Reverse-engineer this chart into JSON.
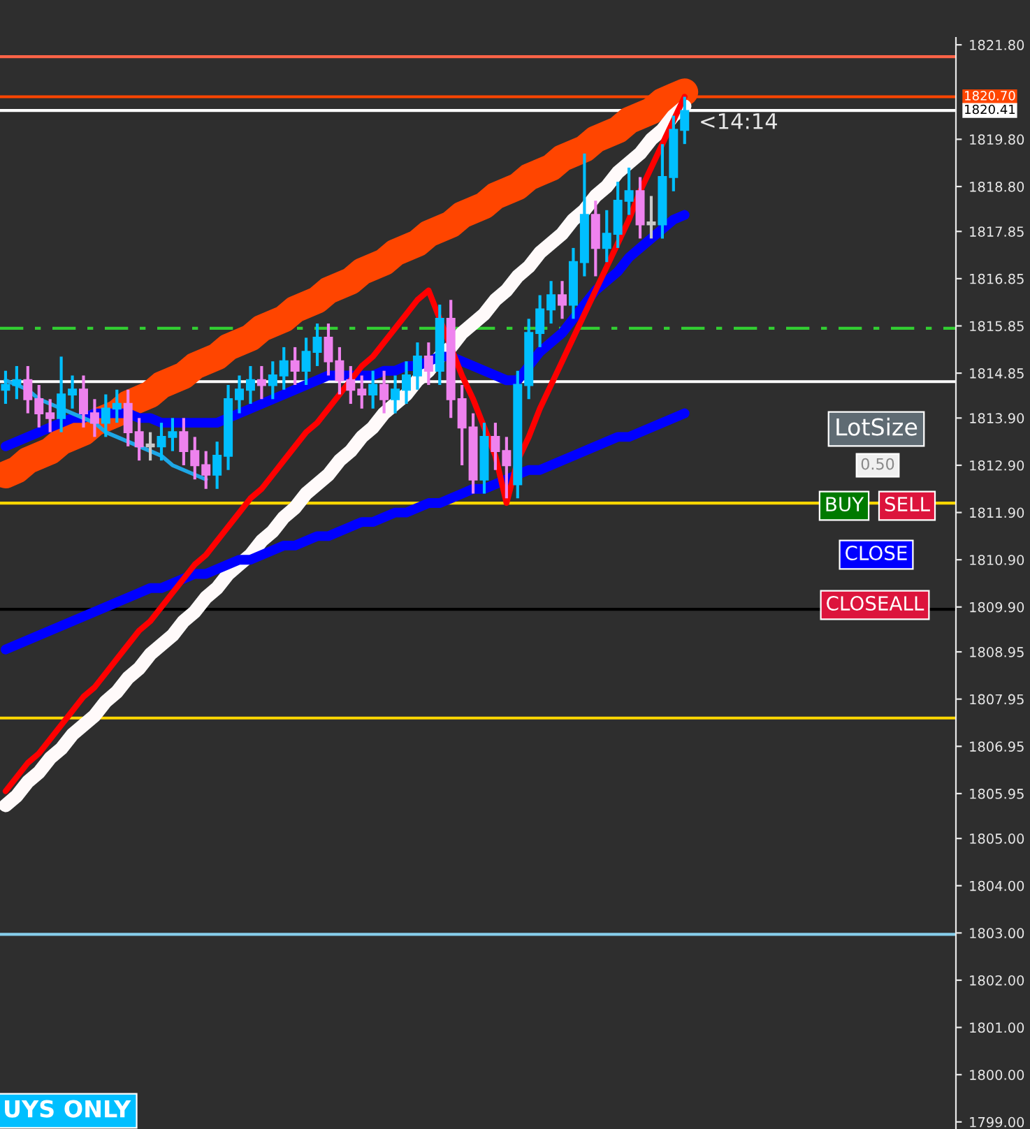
{
  "chart_data": {
    "type": "candlestick",
    "categories": [
      null,
      null,
      null,
      null,
      null,
      null,
      null,
      null,
      null,
      null,
      null,
      null,
      null,
      null,
      null,
      null,
      null,
      null,
      null,
      null,
      null,
      null,
      null,
      null,
      null,
      null,
      null,
      null,
      null,
      null,
      null,
      null,
      null,
      null,
      null,
      null,
      null,
      null,
      null,
      null,
      null,
      null,
      null,
      null,
      null,
      null,
      null,
      null,
      null,
      null,
      null,
      null,
      null,
      null,
      null,
      null,
      null,
      null,
      null,
      null,
      null,
      null
    ],
    "ohlc": [
      [
        1814.5,
        1814.9,
        1814.2,
        1814.6
      ],
      [
        1814.6,
        1815.0,
        1814.3,
        1814.7
      ],
      [
        1814.7,
        1815.0,
        1814.0,
        1814.3
      ],
      [
        1814.3,
        1814.6,
        1813.7,
        1814.0
      ],
      [
        1814.0,
        1814.3,
        1813.6,
        1813.9
      ],
      [
        1813.9,
        1815.2,
        1813.6,
        1814.4
      ],
      [
        1814.4,
        1814.8,
        1814.1,
        1814.5
      ],
      [
        1814.5,
        1814.8,
        1813.7,
        1814.0
      ],
      [
        1814.0,
        1814.3,
        1813.5,
        1813.8
      ],
      [
        1813.8,
        1814.4,
        1813.5,
        1814.1
      ],
      [
        1814.1,
        1814.5,
        1813.8,
        1814.2
      ],
      [
        1814.2,
        1814.5,
        1813.3,
        1813.6
      ],
      [
        1813.6,
        1813.9,
        1813.0,
        1813.3
      ],
      [
        1813.3,
        1813.6,
        1813.0,
        1813.3
      ],
      [
        1813.3,
        1813.8,
        1813.0,
        1813.5
      ],
      [
        1813.5,
        1813.9,
        1813.2,
        1813.6
      ],
      [
        1813.6,
        1813.9,
        1812.9,
        1813.2
      ],
      [
        1813.2,
        1813.5,
        1812.6,
        1812.9
      ],
      [
        1812.9,
        1813.2,
        1812.4,
        1812.7
      ],
      [
        1812.7,
        1813.4,
        1812.4,
        1813.1
      ],
      [
        1813.1,
        1814.6,
        1812.8,
        1814.3
      ],
      [
        1814.3,
        1814.8,
        1814.0,
        1814.5
      ],
      [
        1814.5,
        1815.0,
        1814.2,
        1814.7
      ],
      [
        1814.7,
        1815.0,
        1814.3,
        1814.6
      ],
      [
        1814.6,
        1815.1,
        1814.3,
        1814.8
      ],
      [
        1814.8,
        1815.4,
        1814.5,
        1815.1
      ],
      [
        1815.1,
        1815.4,
        1814.6,
        1814.9
      ],
      [
        1814.9,
        1815.6,
        1814.6,
        1815.3
      ],
      [
        1815.3,
        1815.9,
        1815.0,
        1815.6
      ],
      [
        1815.6,
        1815.9,
        1814.8,
        1815.1
      ],
      [
        1815.1,
        1815.4,
        1814.4,
        1814.7
      ],
      [
        1814.7,
        1815.0,
        1814.2,
        1814.5
      ],
      [
        1814.5,
        1814.8,
        1814.1,
        1814.4
      ],
      [
        1814.4,
        1814.9,
        1814.1,
        1814.6
      ],
      [
        1814.6,
        1814.9,
        1814.0,
        1814.3
      ],
      [
        1814.3,
        1814.8,
        1814.0,
        1814.5
      ],
      [
        1814.5,
        1815.1,
        1814.2,
        1814.8
      ],
      [
        1814.8,
        1815.5,
        1814.5,
        1815.2
      ],
      [
        1815.2,
        1815.5,
        1814.6,
        1814.9
      ],
      [
        1814.9,
        1816.3,
        1814.6,
        1816.0
      ],
      [
        1816.0,
        1816.4,
        1813.9,
        1814.3
      ],
      [
        1814.3,
        1814.6,
        1812.9,
        1813.7
      ],
      [
        1813.7,
        1814.0,
        1812.3,
        1812.6
      ],
      [
        1812.6,
        1813.8,
        1812.3,
        1813.5
      ],
      [
        1813.5,
        1813.8,
        1812.8,
        1813.2
      ],
      [
        1813.2,
        1813.5,
        1812.2,
        1812.9
      ],
      [
        1812.5,
        1814.9,
        1812.2,
        1814.6
      ],
      [
        1814.6,
        1816.0,
        1814.3,
        1815.7
      ],
      [
        1815.7,
        1816.5,
        1815.4,
        1816.2
      ],
      [
        1816.2,
        1816.8,
        1815.9,
        1816.5
      ],
      [
        1816.5,
        1816.8,
        1816.0,
        1816.3
      ],
      [
        1816.3,
        1817.5,
        1816.0,
        1817.2
      ],
      [
        1817.2,
        1819.5,
        1816.9,
        1818.2
      ],
      [
        1818.2,
        1818.5,
        1816.9,
        1817.5
      ],
      [
        1817.5,
        1818.3,
        1817.2,
        1817.8
      ],
      [
        1817.8,
        1818.9,
        1817.5,
        1818.5
      ],
      [
        1818.5,
        1819.2,
        1818.2,
        1818.7
      ],
      [
        1818.7,
        1819.0,
        1817.7,
        1818.0
      ],
      [
        1818.0,
        1818.6,
        1817.7,
        1818.0
      ],
      [
        1818.0,
        1819.7,
        1817.7,
        1819.0
      ],
      [
        1819.0,
        1820.3,
        1818.7,
        1820.0
      ],
      [
        1820.0,
        1820.7,
        1819.7,
        1820.4
      ]
    ],
    "colors": [
      "#00bfff",
      "#00bfff",
      "#ee82ee",
      "#ee82ee",
      "#ee82ee",
      "#00bfff",
      "#00bfff",
      "#ee82ee",
      "#ee82ee",
      "#00bfff",
      "#00bfff",
      "#ee82ee",
      "#ee82ee",
      "#c8c8c8",
      "#00bfff",
      "#00bfff",
      "#ee82ee",
      "#ee82ee",
      "#ee82ee",
      "#00bfff",
      "#00bfff",
      "#00bfff",
      "#00bfff",
      "#ee82ee",
      "#00bfff",
      "#00bfff",
      "#ee82ee",
      "#00bfff",
      "#00bfff",
      "#ee82ee",
      "#ee82ee",
      "#ee82ee",
      "#ee82ee",
      "#00bfff",
      "#ee82ee",
      "#00bfff",
      "#00bfff",
      "#00bfff",
      "#ee82ee",
      "#00bfff",
      "#ee82ee",
      "#ee82ee",
      "#ee82ee",
      "#00bfff",
      "#ee82ee",
      "#ee82ee",
      "#00bfff",
      "#00bfff",
      "#00bfff",
      "#00bfff",
      "#ee82ee",
      "#00bfff",
      "#00bfff",
      "#ee82ee",
      "#00bfff",
      "#00bfff",
      "#00bfff",
      "#ee82ee",
      "#c8c8c8",
      "#00bfff",
      "#00bfff",
      "#00bfff"
    ],
    "series": [
      {
        "type": "line",
        "color": "#ff4500",
        "values": [
          1812.7,
          1812.8,
          1813.0,
          1813.1,
          1813.2,
          1813.4,
          1813.5,
          1813.6,
          1813.8,
          1813.9,
          1814.0,
          1814.2,
          1814.3,
          1814.4,
          1814.6,
          1814.7,
          1814.8,
          1815.0,
          1815.1,
          1815.2,
          1815.4,
          1815.5,
          1815.6,
          1815.8,
          1815.9,
          1816.0,
          1816.2,
          1816.3,
          1816.4,
          1816.6,
          1816.7,
          1816.8,
          1817.0,
          1817.1,
          1817.2,
          1817.4,
          1817.5,
          1817.6,
          1817.8,
          1817.9,
          1818.0,
          1818.2,
          1818.3,
          1818.4,
          1818.6,
          1818.7,
          1818.8,
          1819.0,
          1819.1,
          1819.2,
          1819.4,
          1819.5,
          1819.6,
          1819.8,
          1819.9,
          1820.0,
          1820.2,
          1820.3,
          1820.4,
          1820.6,
          1820.7,
          1820.8
        ]
      },
      {
        "type": "line",
        "color": "#fffafa",
        "values": [
          1805.7,
          1805.9,
          1806.2,
          1806.4,
          1806.7,
          1806.9,
          1807.2,
          1807.4,
          1807.6,
          1807.9,
          1808.1,
          1808.4,
          1808.6,
          1808.9,
          1809.1,
          1809.3,
          1809.6,
          1809.8,
          1810.1,
          1810.3,
          1810.6,
          1810.8,
          1811.0,
          1811.3,
          1811.5,
          1811.8,
          1812.0,
          1812.3,
          1812.5,
          1812.7,
          1813.0,
          1813.2,
          1813.5,
          1813.7,
          1814.0,
          1814.2,
          1814.4,
          1814.7,
          1814.9,
          1815.2,
          1815.4,
          1815.7,
          1815.9,
          1816.1,
          1816.4,
          1816.6,
          1816.9,
          1817.1,
          1817.4,
          1817.6,
          1817.8,
          1818.1,
          1818.3,
          1818.6,
          1818.8,
          1819.1,
          1819.3,
          1819.5,
          1819.8,
          1820.0,
          1820.3,
          1820.5
        ]
      },
      {
        "type": "line",
        "color": "#ff0000",
        "values": [
          1806.0,
          1806.3,
          1806.6,
          1806.8,
          1807.1,
          1807.4,
          1807.7,
          1808.0,
          1808.2,
          1808.5,
          1808.8,
          1809.1,
          1809.4,
          1809.6,
          1809.9,
          1810.2,
          1810.5,
          1810.8,
          1811.0,
          1811.3,
          1811.6,
          1811.9,
          1812.2,
          1812.4,
          1812.7,
          1813.0,
          1813.3,
          1813.6,
          1813.8,
          1814.1,
          1814.4,
          1814.7,
          1815.0,
          1815.2,
          1815.5,
          1815.8,
          1816.1,
          1816.4,
          1816.6,
          1816.0,
          1815.4,
          1814.8,
          1814.3,
          1813.7,
          1813.1,
          1812.1,
          1813.0,
          1813.5,
          1814.1,
          1814.6,
          1815.1,
          1815.6,
          1816.1,
          1816.6,
          1817.1,
          1817.6,
          1818.1,
          1818.7,
          1819.2,
          1819.7,
          1820.2,
          1820.7
        ]
      },
      {
        "type": "line",
        "color": "#1ea7e6",
        "values": [
          1814.7,
          1814.6,
          1814.5,
          1814.3,
          1814.2,
          1814.1,
          1814.0,
          1813.9,
          1813.8,
          1813.6,
          1813.5,
          1813.4,
          1813.3,
          1813.2,
          1813.1,
          1812.9,
          1812.8,
          1812.7,
          1812.6,
          null,
          null,
          null,
          null,
          null,
          null,
          null,
          null,
          null,
          null,
          null,
          null,
          null,
          null,
          null,
          null,
          null,
          null,
          null,
          null,
          null,
          null,
          null,
          null,
          null,
          null,
          null,
          null,
          null,
          null,
          null,
          null,
          null,
          null,
          null,
          null,
          null,
          null,
          null,
          null,
          null,
          null,
          null
        ]
      },
      {
        "type": "line",
        "color": "#0000ff",
        "values": [
          1809.0,
          1809.1,
          1809.2,
          1809.3,
          1809.4,
          1809.5,
          1809.6,
          1809.7,
          1809.8,
          1809.9,
          1810.0,
          1810.1,
          1810.2,
          1810.3,
          1810.3,
          1810.4,
          1810.5,
          1810.6,
          1810.6,
          1810.7,
          1810.8,
          1810.9,
          1810.9,
          1811.0,
          1811.1,
          1811.2,
          1811.2,
          1811.3,
          1811.4,
          1811.4,
          1811.5,
          1811.6,
          1811.7,
          1811.7,
          1811.8,
          1811.9,
          1811.9,
          1812.0,
          1812.1,
          1812.1,
          1812.2,
          1812.3,
          1812.4,
          1812.4,
          1812.5,
          1812.6,
          1812.7,
          1812.8,
          1812.8,
          1812.9,
          1813.0,
          1813.1,
          1813.2,
          1813.3,
          1813.4,
          1813.5,
          1813.5,
          1813.6,
          1813.7,
          1813.8,
          1813.9,
          1814.0
        ]
      },
      {
        "type": "line",
        "color": "#0000ff",
        "values": [
          1813.3,
          1813.4,
          1813.5,
          1813.6,
          1813.7,
          1813.8,
          1813.9,
          1813.9,
          1814.0,
          1814.0,
          1814.0,
          1814.0,
          1813.9,
          1813.9,
          1813.8,
          1813.8,
          1813.8,
          1813.8,
          1813.8,
          1813.8,
          1813.9,
          1814.0,
          1814.1,
          1814.2,
          1814.3,
          1814.4,
          1814.5,
          1814.6,
          1814.7,
          1814.8,
          1814.8,
          1814.8,
          1814.8,
          1814.8,
          1814.9,
          1814.9,
          1815.0,
          1815.0,
          1815.1,
          1815.2,
          1815.2,
          1815.1,
          1815.0,
          1814.9,
          1814.8,
          1814.7,
          1814.7,
          1815.0,
          1815.3,
          1815.5,
          1815.7,
          1816.0,
          1816.3,
          1816.6,
          1816.8,
          1817.0,
          1817.3,
          1817.5,
          1817.7,
          1817.9,
          1818.1,
          1818.2
        ]
      }
    ],
    "ylim": [
      1798.85,
      1821.95
    ],
    "yticks": [
      {
        "value": 1821.8,
        "label": "1821.80"
      },
      {
        "value": 1819.8,
        "label": "1819.80"
      },
      {
        "value": 1818.8,
        "label": "1818.80"
      },
      {
        "value": 1817.85,
        "label": "1817.85"
      },
      {
        "value": 1816.85,
        "label": "1816.85"
      },
      {
        "value": 1815.85,
        "label": "1815.85"
      },
      {
        "value": 1814.85,
        "label": "1814.85"
      },
      {
        "value": 1813.9,
        "label": "1813.90"
      },
      {
        "value": 1812.9,
        "label": "1812.90"
      },
      {
        "value": 1811.9,
        "label": "1811.90"
      },
      {
        "value": 1810.9,
        "label": "1810.90"
      },
      {
        "value": 1809.9,
        "label": "1809.90"
      },
      {
        "value": 1808.95,
        "label": "1808.95"
      },
      {
        "value": 1807.95,
        "label": "1807.95"
      },
      {
        "value": 1806.95,
        "label": "1806.95"
      },
      {
        "value": 1805.95,
        "label": "1805.95"
      },
      {
        "value": 1805,
        "label": "1805.00"
      },
      {
        "value": 1804,
        "label": "1804.00"
      },
      {
        "value": 1803,
        "label": "1803.00"
      },
      {
        "value": 1802,
        "label": "1802.00"
      },
      {
        "value": 1801,
        "label": "1801.00"
      },
      {
        "value": 1800,
        "label": "1800.00"
      },
      {
        "value": 1799,
        "label": "1799.00"
      }
    ],
    "ref_lines": [
      {
        "axis": "y",
        "value": 1821.55,
        "color": "#ff6347"
      },
      {
        "axis": "y",
        "value": 1820.7,
        "label": "1820.70",
        "color": "#ff4500"
      },
      {
        "axis": "y",
        "value": 1820.41,
        "label": "1820.41",
        "color": "#ffffff"
      },
      {
        "axis": "y",
        "value": 1815.8,
        "color": "#32cd32",
        "line_style": "dashed"
      },
      {
        "axis": "y",
        "value": 1814.67,
        "color": "#ffffff"
      },
      {
        "axis": "y",
        "value": 1812.1,
        "color": "#ffd700"
      },
      {
        "axis": "y",
        "value": 1809.85,
        "color": "#000000"
      },
      {
        "axis": "y",
        "value": 1807.55,
        "color": "#ffd700"
      },
      {
        "axis": "y",
        "value": 1802.97,
        "color": "#87ceeb"
      }
    ],
    "annotations": [
      "<14:14",
      "LotSize",
      "0.50",
      "BUY",
      "SELL",
      "CLOSE",
      "CLOSEALL",
      "UYS ONLY"
    ],
    "grid": false,
    "legend": false
  }
}
